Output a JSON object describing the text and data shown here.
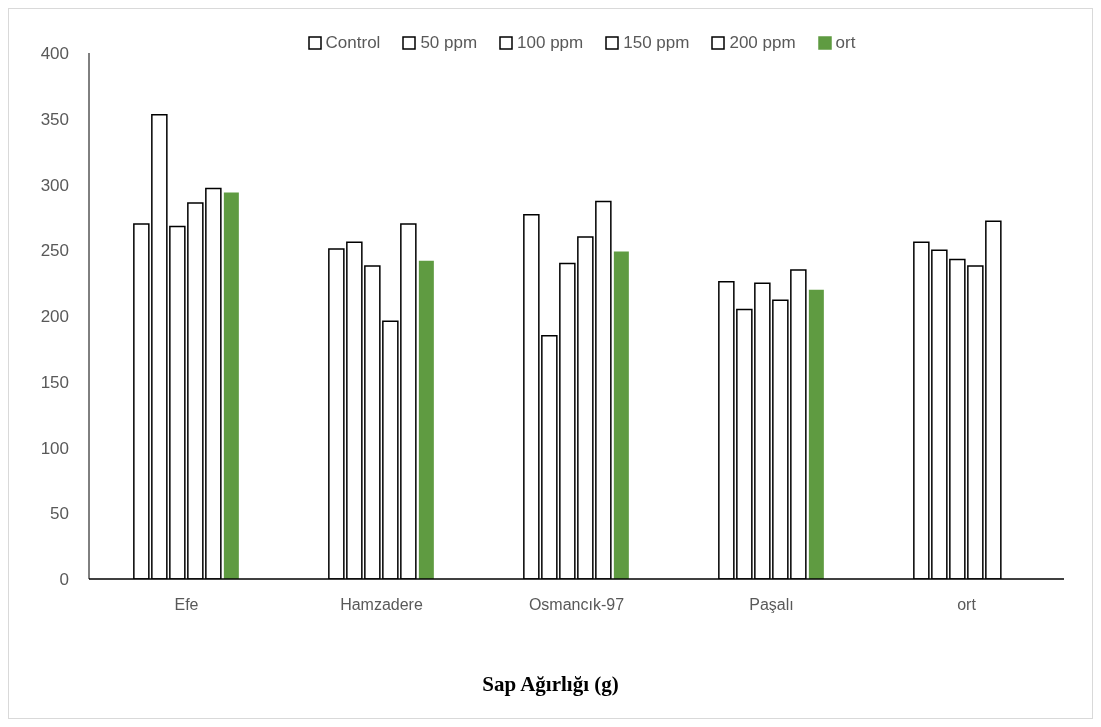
{
  "chart_data": {
    "type": "bar",
    "xlabel": "Sap Ağırlığı (g)",
    "categories": [
      "Efe",
      "Hamzadere",
      "Osmancık-97",
      "Paşalı",
      "ort"
    ],
    "series": [
      {
        "name": "Control",
        "color": "#ffffff",
        "values": [
          270,
          251,
          277,
          226,
          256
        ]
      },
      {
        "name": "50 ppm",
        "color": "#ffffff",
        "values": [
          353,
          256,
          185,
          205,
          250
        ]
      },
      {
        "name": "100 ppm",
        "color": "#ffffff",
        "values": [
          268,
          238,
          240,
          225,
          243
        ]
      },
      {
        "name": "150 ppm",
        "color": "#ffffff",
        "values": [
          286,
          196,
          260,
          212,
          238
        ]
      },
      {
        "name": "200 ppm",
        "color": "#ffffff",
        "values": [
          297,
          270,
          287,
          235,
          272
        ]
      },
      {
        "name": "ort",
        "color": "#5f9b41",
        "values": [
          294,
          242,
          249,
          220,
          null
        ]
      }
    ],
    "ylim": [
      0,
      400
    ],
    "yticks": [
      0,
      50,
      100,
      150,
      200,
      250,
      300,
      350,
      400
    ],
    "grid": false,
    "legend": "top"
  }
}
